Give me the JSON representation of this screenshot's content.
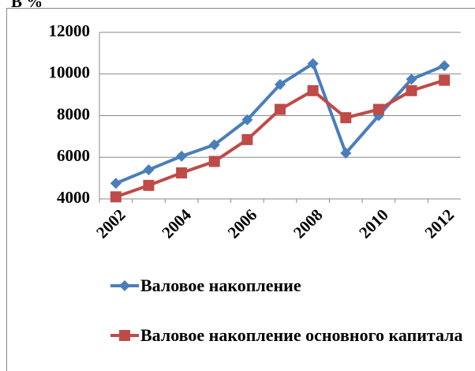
{
  "chart_data": {
    "type": "line",
    "subtitle": "В %",
    "categories": [
      "2002",
      null,
      "2004",
      null,
      "2006",
      null,
      "2008",
      null,
      "2010",
      null,
      "2012"
    ],
    "series": [
      {
        "name": "Валовое накопление",
        "color": "#4a7ebb",
        "marker": "diamond",
        "values": [
          4750,
          5400,
          6050,
          6600,
          7800,
          9500,
          10500,
          6200,
          8000,
          9750,
          10400
        ]
      },
      {
        "name": "Валовое накопление основного капитала",
        "color": "#be4b48",
        "marker": "square",
        "values": [
          4100,
          4650,
          5250,
          5800,
          6850,
          8300,
          9200,
          7900,
          8300,
          9200,
          9700
        ]
      }
    ],
    "ylim": [
      4000,
      12000
    ],
    "yticks": [
      4000,
      6000,
      8000,
      10000,
      12000
    ],
    "grid": true,
    "legend": "bottom"
  }
}
